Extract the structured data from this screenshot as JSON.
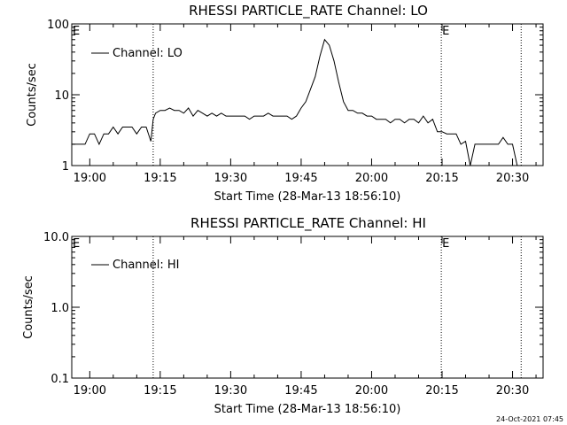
{
  "footer_timestamp": "24-Oct-2021 07:45",
  "chart_data": [
    {
      "type": "line",
      "title": "RHESSI PARTICLE_RATE Channel: LO",
      "xlabel": "Start Time (28-Mar-13 18:56:10)",
      "ylabel": "Counts/sec",
      "yscale": "log",
      "ylim": [
        1,
        100
      ],
      "xlim": [
        "18:56:10",
        "20:36:30"
      ],
      "x_ticks": [
        "19:00",
        "19:15",
        "19:30",
        "19:45",
        "20:00",
        "20:15",
        "20:30"
      ],
      "y_ticks": [
        "1",
        "10",
        "100"
      ],
      "legend": {
        "label": "Channel: LO",
        "placement": "top-left"
      },
      "eclipse_marker": "E",
      "event_lines": [
        "19:13:30",
        "20:14:50",
        "20:31:50"
      ],
      "e_markers": [
        "18:56:10",
        "20:14:50"
      ],
      "series": [
        {
          "name": "Channel: LO",
          "x": [
            "18:56:10",
            "18:58:00",
            "18:59:00",
            "19:00:00",
            "19:01:00",
            "19:02:00",
            "19:03:00",
            "19:04:00",
            "19:05:00",
            "19:06:00",
            "19:07:00",
            "19:08:00",
            "19:09:00",
            "19:10:00",
            "19:11:00",
            "19:12:00",
            "19:13:00",
            "19:13:30",
            "19:14:00",
            "19:15:00",
            "19:16:00",
            "19:17:00",
            "19:18:00",
            "19:19:00",
            "19:20:00",
            "19:21:00",
            "19:22:00",
            "19:23:00",
            "19:24:00",
            "19:25:00",
            "19:26:00",
            "19:27:00",
            "19:28:00",
            "19:29:00",
            "19:30:00",
            "19:31:00",
            "19:32:00",
            "19:33:00",
            "19:34:00",
            "19:35:00",
            "19:36:00",
            "19:37:00",
            "19:38:00",
            "19:39:00",
            "19:40:00",
            "19:41:00",
            "19:42:00",
            "19:43:00",
            "19:44:00",
            "19:45:00",
            "19:46:00",
            "19:47:00",
            "19:48:00",
            "19:49:00",
            "19:50:00",
            "19:51:00",
            "19:52:00",
            "19:53:00",
            "19:54:00",
            "19:55:00",
            "19:56:00",
            "19:57:00",
            "19:58:00",
            "19:59:00",
            "20:00:00",
            "20:01:00",
            "20:02:00",
            "20:03:00",
            "20:04:00",
            "20:05:00",
            "20:06:00",
            "20:07:00",
            "20:08:00",
            "20:09:00",
            "20:10:00",
            "20:11:00",
            "20:12:00",
            "20:13:00",
            "20:14:00",
            "20:15:00",
            "20:16:00",
            "20:17:00",
            "20:18:00",
            "20:19:00",
            "20:20:00",
            "20:21:00",
            "20:22:00",
            "20:23:00",
            "20:24:00",
            "20:25:00",
            "20:26:00",
            "20:27:00",
            "20:28:00",
            "20:29:00",
            "20:30:00",
            "20:31:00",
            "20:32:00"
          ],
          "y": [
            2,
            2,
            2,
            2.8,
            2.8,
            2,
            2.8,
            2.8,
            3.5,
            2.8,
            3.5,
            3.5,
            3.5,
            2.8,
            3.5,
            3.5,
            2.2,
            4.5,
            5.5,
            6,
            6,
            6.5,
            6,
            6,
            5.5,
            6.5,
            5,
            6,
            5.5,
            5,
            5.5,
            5,
            5.5,
            5,
            5,
            5,
            5,
            5,
            4.5,
            5,
            5,
            5,
            5.5,
            5,
            5,
            5,
            5,
            4.5,
            5,
            6.5,
            8,
            12,
            18,
            35,
            60,
            50,
            30,
            15,
            8,
            6,
            6,
            5.5,
            5.5,
            5,
            5,
            4.5,
            4.5,
            4.5,
            4,
            4.5,
            4.5,
            4,
            4.5,
            4.5,
            4,
            5,
            4,
            4.5,
            3,
            3,
            2.8,
            2.8,
            2.8,
            2,
            2.2,
            1,
            2,
            2,
            2,
            2,
            2,
            2,
            2.5,
            2,
            2,
            1,
            1
          ]
        }
      ]
    },
    {
      "type": "line",
      "title": "RHESSI PARTICLE_RATE Channel: HI",
      "xlabel": "Start Time (28-Mar-13 18:56:10)",
      "ylabel": "Counts/sec",
      "yscale": "log",
      "ylim": [
        0.1,
        10
      ],
      "xlim": [
        "18:56:10",
        "20:36:30"
      ],
      "x_ticks": [
        "19:00",
        "19:15",
        "19:30",
        "19:45",
        "20:00",
        "20:15",
        "20:30"
      ],
      "y_ticks": [
        "0.1",
        "1.0",
        "10.0"
      ],
      "legend": {
        "label": "Channel: HI",
        "placement": "top-left"
      },
      "eclipse_marker": "E",
      "event_lines": [
        "19:13:30",
        "20:14:50",
        "20:31:50"
      ],
      "e_markers": [
        "18:56:10",
        "20:14:50"
      ],
      "series": [
        {
          "name": "Channel: HI",
          "x": [],
          "y": []
        }
      ]
    }
  ]
}
